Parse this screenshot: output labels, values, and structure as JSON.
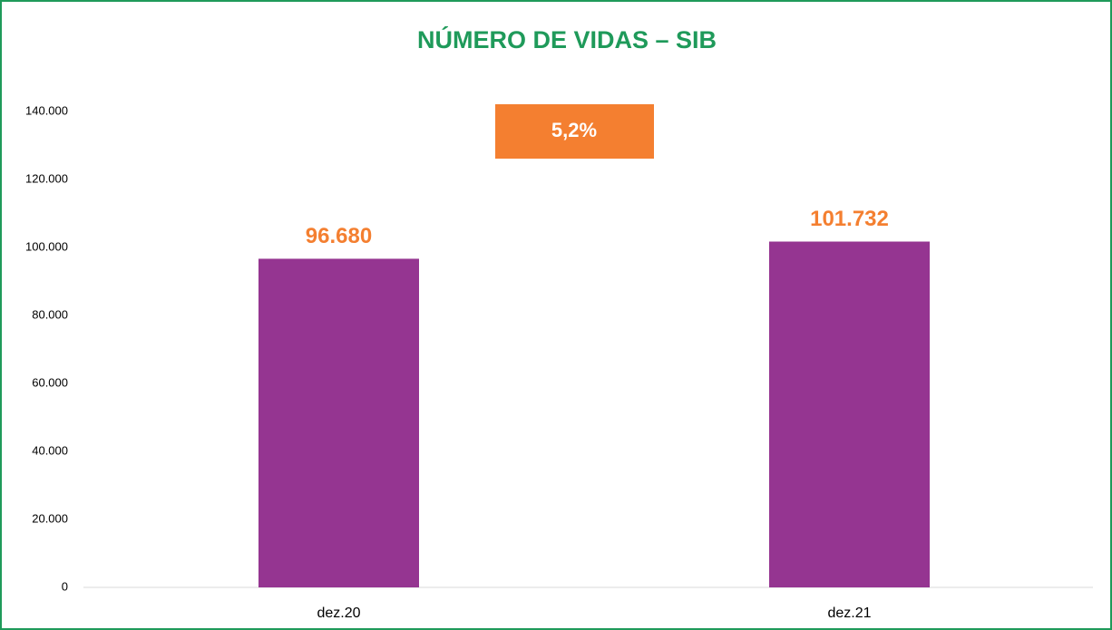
{
  "chart_data": {
    "type": "bar",
    "title": "NÚMERO DE VIDAS  – SIB",
    "categories": [
      "dez.20",
      "dez.21"
    ],
    "values": [
      96680,
      101732
    ],
    "value_labels": [
      "96.680",
      "101.732"
    ],
    "color": "#953591",
    "label_color": "#f47f30",
    "annotation": "5,2%",
    "annotation_color": "#f47f30",
    "ylim": [
      0,
      140000
    ],
    "yticks": [
      0,
      {
        "value": 20000,
        "label": "20.000"
      },
      {
        "value": 40000,
        "label": "40.000"
      },
      {
        "value": 60000,
        "label": "60.000"
      },
      {
        "value": 80000,
        "label": "80.000"
      },
      {
        "value": 100000,
        "label": "100.000"
      },
      {
        "value": 120000,
        "label": "120.000"
      },
      {
        "value": 140000,
        "label": "140.000"
      }
    ],
    "grid": false
  }
}
